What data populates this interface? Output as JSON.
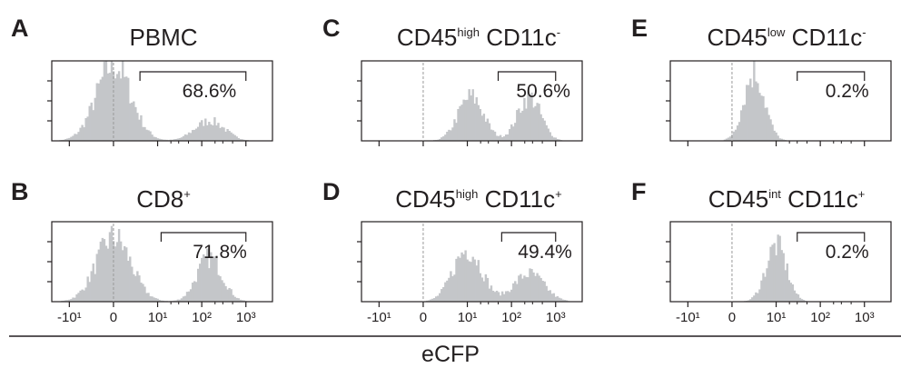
{
  "figure": {
    "xlabel": "eCFP",
    "x_tick_labels": [
      "-10¹",
      "0",
      "10¹",
      "10²",
      "10³"
    ],
    "colors": {
      "histogram": "#c4c6c9",
      "axis": "#231f20",
      "zero_line": "#9a9a9a"
    }
  },
  "chart_data": [
    {
      "panel": "A",
      "type": "histogram",
      "title": {
        "main": "PBMC",
        "sup1": "",
        "mid": "",
        "sup2": ""
      },
      "gate": {
        "label": "68.6%",
        "percent": 68.6,
        "range": [
          6,
          1000
        ]
      },
      "x_scale": "biexponential",
      "xlim": [
        -25,
        4000
      ],
      "distribution": [
        {
          "center": 0,
          "width": 3,
          "height": 0.95
        },
        {
          "center": 150,
          "width": 2.6,
          "height": 0.25
        }
      ]
    },
    {
      "panel": "B",
      "type": "histogram",
      "title": {
        "main": "CD8",
        "sup1": "+",
        "mid": "",
        "sup2": ""
      },
      "gate": {
        "label": "71.8%",
        "percent": 71.8,
        "range": [
          12,
          1000
        ]
      },
      "x_scale": "biexponential",
      "xlim": [
        -25,
        4000
      ],
      "distribution": [
        {
          "center": 0,
          "width": 3,
          "height": 0.8
        },
        {
          "center": 150,
          "width": 2.2,
          "height": 0.55
        }
      ]
    },
    {
      "panel": "C",
      "type": "histogram",
      "title": {
        "main": "CD45",
        "sup1": "high",
        "mid": " CD11c",
        "sup2": "-"
      },
      "gate": {
        "label": "50.6%",
        "percent": 50.6,
        "range": [
          50,
          1000
        ]
      },
      "x_scale": "biexponential",
      "xlim": [
        -25,
        4000
      ],
      "distribution": [
        {
          "center": 12,
          "width": 2.2,
          "height": 0.55
        },
        {
          "center": 250,
          "width": 2.0,
          "height": 0.55
        }
      ]
    },
    {
      "panel": "D",
      "type": "histogram",
      "title": {
        "main": "CD45",
        "sup1": "high",
        "mid": " CD11c",
        "sup2": "+"
      },
      "gate": {
        "label": "49.4%",
        "percent": 49.4,
        "range": [
          60,
          1000
        ]
      },
      "x_scale": "biexponential",
      "xlim": [
        -25,
        4000
      ],
      "distribution": [
        {
          "center": 10,
          "width": 2.5,
          "height": 0.65
        },
        {
          "center": 250,
          "width": 2.6,
          "height": 0.35
        }
      ]
    },
    {
      "panel": "E",
      "type": "histogram",
      "title": {
        "main": "CD45",
        "sup1": "low",
        "mid": " CD11c",
        "sup2": "-"
      },
      "gate": {
        "label": "0.2%",
        "percent": 0.2,
        "range": [
          30,
          1000
        ]
      },
      "x_scale": "biexponential",
      "xlim": [
        -25,
        4000
      ],
      "distribution": [
        {
          "center": 5,
          "width": 1.8,
          "height": 0.85
        }
      ]
    },
    {
      "panel": "F",
      "type": "histogram",
      "title": {
        "main": "CD45",
        "sup1": "int",
        "mid": " CD11c",
        "sup2": "+"
      },
      "gate": {
        "label": "0.2%",
        "percent": 0.2,
        "range": [
          30,
          1000
        ]
      },
      "x_scale": "biexponential",
      "xlim": [
        -25,
        4000
      ],
      "distribution": [
        {
          "center": 10,
          "width": 1.8,
          "height": 0.7
        }
      ]
    }
  ]
}
